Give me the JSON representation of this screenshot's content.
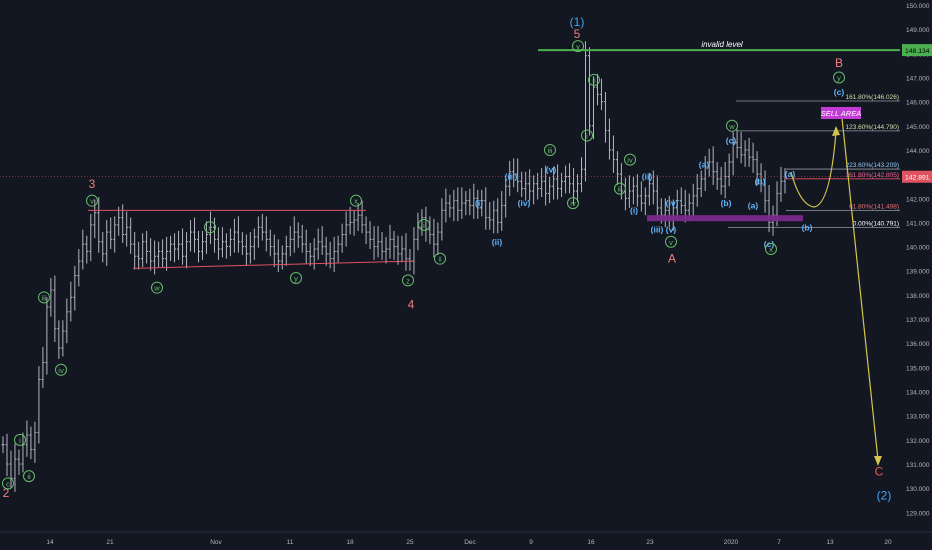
{
  "chart_data": {
    "type": "candlestick",
    "title": "",
    "xlabel": "",
    "ylabel": "",
    "ylim": [
      128.6,
      150.0
    ],
    "grid": false,
    "x_ticks": [
      "14",
      "21",
      "Nov",
      "11",
      "18",
      "25",
      "Dec",
      "9",
      "16",
      "23",
      "2020",
      "7",
      "13",
      "20"
    ],
    "y_ticks": [
      "129.000",
      "130.000",
      "131.000",
      "132.000",
      "133.000",
      "134.000",
      "135.000",
      "136.000",
      "137.000",
      "138.000",
      "139.000",
      "140.000",
      "141.000",
      "142.000",
      "143.000",
      "144.000",
      "145.000",
      "146.000",
      "147.000",
      "148.000",
      "149.000",
      "150.000"
    ],
    "last_price": "142.891",
    "invalid_level": {
      "label": "invalid level",
      "value": "148.134"
    },
    "sell_area_label": "SELL AREA",
    "fib_levels": [
      {
        "label": "161.80%(146.026)",
        "value": 146.026
      },
      {
        "label": "123.60%(144.790)",
        "value": 144.79
      },
      {
        "label": "223.60%(143.209)",
        "value": 143.209
      },
      {
        "label": "261.80%(142.805)",
        "value": 142.805
      },
      {
        "label": "61.80%(141.498)",
        "value": 141.498
      },
      {
        "label": "0.00%(140.791)",
        "value": 140.791
      }
    ],
    "price_path": [
      [
        0,
        131.8
      ],
      [
        4,
        131.0
      ],
      [
        8,
        130.4
      ],
      [
        12,
        131.2
      ],
      [
        16,
        131.0
      ],
      [
        20,
        131.8
      ],
      [
        24,
        132.2
      ],
      [
        28,
        131.6
      ],
      [
        32,
        132.3
      ],
      [
        36,
        134.5
      ],
      [
        40,
        135.2
      ],
      [
        44,
        137.5
      ],
      [
        48,
        138.2
      ],
      [
        52,
        136.6
      ],
      [
        56,
        135.8
      ],
      [
        60,
        136.5
      ],
      [
        64,
        137.3
      ],
      [
        68,
        137.9
      ],
      [
        72,
        138.8
      ],
      [
        76,
        139.4
      ],
      [
        80,
        140.1
      ],
      [
        84,
        139.8
      ],
      [
        88,
        140.9
      ],
      [
        92,
        141.4
      ],
      [
        96,
        140.2
      ],
      [
        100,
        139.7
      ],
      [
        104,
        140.6
      ],
      [
        108,
        140.3
      ],
      [
        112,
        140.9
      ],
      [
        116,
        141.2
      ],
      [
        120,
        140.5
      ],
      [
        124,
        140.8
      ],
      [
        128,
        140.1
      ],
      [
        132,
        139.6
      ],
      [
        136,
        139.5
      ],
      [
        140,
        140.2
      ],
      [
        144,
        139.8
      ],
      [
        148,
        139.4
      ],
      [
        152,
        139.6
      ],
      [
        156,
        139.8
      ],
      [
        160,
        139.5
      ],
      [
        164,
        139.8
      ],
      [
        168,
        140.1
      ],
      [
        172,
        139.9
      ],
      [
        176,
        140.1
      ],
      [
        180,
        139.6
      ],
      [
        184,
        140.2
      ],
      [
        188,
        140.6
      ],
      [
        192,
        140.3
      ],
      [
        196,
        139.8
      ],
      [
        200,
        140.2
      ],
      [
        204,
        140.5
      ],
      [
        208,
        140.8
      ],
      [
        212,
        140.3
      ],
      [
        216,
        139.9
      ],
      [
        220,
        140.2
      ],
      [
        224,
        140.0
      ],
      [
        228,
        140.3
      ],
      [
        232,
        140.6
      ],
      [
        236,
        140.2
      ],
      [
        240,
        140.0
      ],
      [
        244,
        139.7
      ],
      [
        248,
        140.0
      ],
      [
        252,
        140.4
      ],
      [
        256,
        140.8
      ],
      [
        260,
        140.6
      ],
      [
        264,
        140.3
      ],
      [
        268,
        140.0
      ],
      [
        272,
        139.7
      ],
      [
        276,
        139.4
      ],
      [
        280,
        139.7
      ],
      [
        284,
        140.0
      ],
      [
        288,
        140.3
      ],
      [
        292,
        140.6
      ],
      [
        296,
        140.4
      ],
      [
        300,
        140.1
      ],
      [
        304,
        139.8
      ],
      [
        308,
        139.6
      ],
      [
        312,
        139.9
      ],
      [
        316,
        140.2
      ],
      [
        320,
        140.0
      ],
      [
        324,
        139.7
      ],
      [
        328,
        139.5
      ],
      [
        332,
        139.8
      ],
      [
        336,
        140.1
      ],
      [
        340,
        140.5
      ],
      [
        344,
        140.9
      ],
      [
        348,
        141.0
      ],
      [
        352,
        141.1
      ],
      [
        356,
        141.3
      ],
      [
        360,
        140.9
      ],
      [
        364,
        140.6
      ],
      [
        368,
        140.3
      ],
      [
        372,
        140.0
      ],
      [
        376,
        140.2
      ],
      [
        380,
        139.8
      ],
      [
        384,
        139.9
      ],
      [
        388,
        140.3
      ],
      [
        392,
        140.0
      ],
      [
        396,
        139.7
      ],
      [
        400,
        139.9
      ],
      [
        404,
        139.5
      ],
      [
        408,
        139.4
      ],
      [
        412,
        140.3
      ],
      [
        416,
        140.8
      ],
      [
        420,
        141.2
      ],
      [
        424,
        140.7
      ],
      [
        428,
        140.5
      ],
      [
        432,
        140.1
      ],
      [
        436,
        140.6
      ],
      [
        440,
        141.5
      ],
      [
        444,
        141.8
      ],
      [
        448,
        141.6
      ],
      [
        452,
        141.9
      ],
      [
        456,
        141.5
      ],
      [
        460,
        141.8
      ],
      [
        464,
        141.9
      ],
      [
        468,
        141.7
      ],
      [
        472,
        142.0
      ],
      [
        476,
        141.6
      ],
      [
        480,
        141.9
      ],
      [
        484,
        141.2
      ],
      [
        488,
        141.1
      ],
      [
        492,
        141.5
      ],
      [
        496,
        141.0
      ],
      [
        500,
        141.7
      ],
      [
        504,
        142.5
      ],
      [
        508,
        143.1
      ],
      [
        512,
        143.0
      ],
      [
        516,
        142.7
      ],
      [
        520,
        142.4
      ],
      [
        524,
        142.6
      ],
      [
        528,
        142.3
      ],
      [
        532,
        142.6
      ],
      [
        536,
        142.4
      ],
      [
        540,
        142.7
      ],
      [
        544,
        142.2
      ],
      [
        548,
        142.5
      ],
      [
        552,
        142.8
      ],
      [
        556,
        142.4
      ],
      [
        560,
        142.7
      ],
      [
        564,
        142.9
      ],
      [
        568,
        142.6
      ],
      [
        572,
        142.3
      ],
      [
        576,
        142.6
      ],
      [
        580,
        143.2
      ],
      [
        584,
        147.9
      ],
      [
        588,
        145.0
      ],
      [
        592,
        146.6
      ],
      [
        596,
        146.3
      ],
      [
        600,
        146.0
      ],
      [
        604,
        144.8
      ],
      [
        608,
        144.0
      ],
      [
        612,
        143.6
      ],
      [
        616,
        143.0
      ],
      [
        620,
        142.3
      ],
      [
        624,
        142.0
      ],
      [
        628,
        142.3
      ],
      [
        632,
        142.5
      ],
      [
        636,
        142.1
      ],
      [
        640,
        141.8
      ],
      [
        644,
        142.1
      ],
      [
        648,
        142.6
      ],
      [
        652,
        142.3
      ],
      [
        656,
        141.6
      ],
      [
        660,
        141.3
      ],
      [
        664,
        141.5
      ],
      [
        668,
        141.2
      ],
      [
        672,
        141.6
      ],
      [
        676,
        141.9
      ],
      [
        680,
        141.7
      ],
      [
        684,
        141.5
      ],
      [
        688,
        141.8
      ],
      [
        692,
        142.1
      ],
      [
        696,
        142.4
      ],
      [
        700,
        142.8
      ],
      [
        704,
        143.3
      ],
      [
        708,
        143.5
      ],
      [
        712,
        143.1
      ],
      [
        716,
        142.8
      ],
      [
        720,
        142.5
      ],
      [
        724,
        142.9
      ],
      [
        728,
        143.5
      ],
      [
        732,
        144.3
      ],
      [
        736,
        144.1
      ],
      [
        740,
        143.8
      ],
      [
        744,
        144.0
      ],
      [
        748,
        143.7
      ],
      [
        752,
        143.6
      ],
      [
        756,
        143.0
      ],
      [
        760,
        142.6
      ],
      [
        764,
        141.9
      ],
      [
        768,
        141.0
      ],
      [
        772,
        141.3
      ],
      [
        776,
        142.2
      ],
      [
        780,
        142.7
      ],
      [
        784,
        142.9
      ]
    ],
    "wave_labels": [
      {
        "text": "2",
        "v": 129.8
      },
      {
        "text": "c",
        "v": 130.2
      },
      {
        "text": "i",
        "v": 132.0
      },
      {
        "text": "ii",
        "v": 130.5
      },
      {
        "text": "3",
        "v": 142.6
      },
      {
        "text": "v",
        "v": 141.9
      },
      {
        "text": "iii",
        "v": 137.9
      },
      {
        "text": "iv",
        "v": 134.9
      },
      {
        "text": "w",
        "v": 138.3
      },
      {
        "text": "x",
        "v": 140.8
      },
      {
        "text": "y",
        "v": 138.7
      },
      {
        "text": "x",
        "v": 141.9
      },
      {
        "text": "z",
        "v": 138.6
      },
      {
        "text": "4",
        "v": 137.6
      },
      {
        "text": "i",
        "v": 140.9
      },
      {
        "text": "ii",
        "v": 139.5
      },
      {
        "text": "(i)",
        "v": 141.8
      },
      {
        "text": "(ii)",
        "v": 140.2
      },
      {
        "text": "(iii)",
        "v": 142.9
      },
      {
        "text": "(iv)",
        "v": 141.8
      },
      {
        "text": "(v)",
        "v": 143.2
      },
      {
        "text": "iii",
        "v": 144.0
      },
      {
        "text": "iv",
        "v": 141.8
      },
      {
        "text": "(1)",
        "v": 149.3
      },
      {
        "text": "5",
        "v": 148.8
      },
      {
        "text": "v",
        "v": 148.3
      },
      {
        "text": "i",
        "v": 144.6
      },
      {
        "text": "ii",
        "v": 146.9
      },
      {
        "text": "iii",
        "v": 142.4
      },
      {
        "text": "iv",
        "v": 143.6
      },
      {
        "text": "(i)",
        "v": 141.5
      },
      {
        "text": "(ii)",
        "v": 142.9
      },
      {
        "text": "(iii)",
        "v": 140.7
      },
      {
        "text": "(iv)",
        "v": 141.8
      },
      {
        "text": "(v)",
        "v": 140.7
      },
      {
        "text": "v",
        "v": 140.2
      },
      {
        "text": "A",
        "v": 139.5
      },
      {
        "text": "(a)",
        "v": 143.4
      },
      {
        "text": "(b)",
        "v": 141.8
      },
      {
        "text": "w",
        "v": 145.0
      },
      {
        "text": "(c)",
        "v": 144.4
      },
      {
        "text": "(b)",
        "v": 142.7
      },
      {
        "text": "(a)",
        "v": 141.7
      },
      {
        "text": "(c)",
        "v": 140.1
      },
      {
        "text": "x",
        "v": 139.9
      },
      {
        "text": "(a)",
        "v": 143.0
      },
      {
        "text": "(b)",
        "v": 140.8
      },
      {
        "text": "B",
        "v": 147.6
      },
      {
        "text": "y",
        "v": 147.0
      },
      {
        "text": "(c)",
        "v": 146.4
      },
      {
        "text": "C",
        "v": 130.7
      },
      {
        "text": "(2)",
        "v": 129.7
      }
    ]
  }
}
